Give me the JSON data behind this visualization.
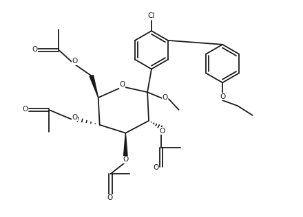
{
  "bg_color": "#ffffff",
  "line_color": "#1a1a1a",
  "line_width": 1.3,
  "font_size": 7.5,
  "figsize": [
    4.4,
    3.16
  ],
  "dpi": 100,
  "xlim": [
    0,
    11
  ],
  "ylim": [
    0,
    7.9
  ]
}
